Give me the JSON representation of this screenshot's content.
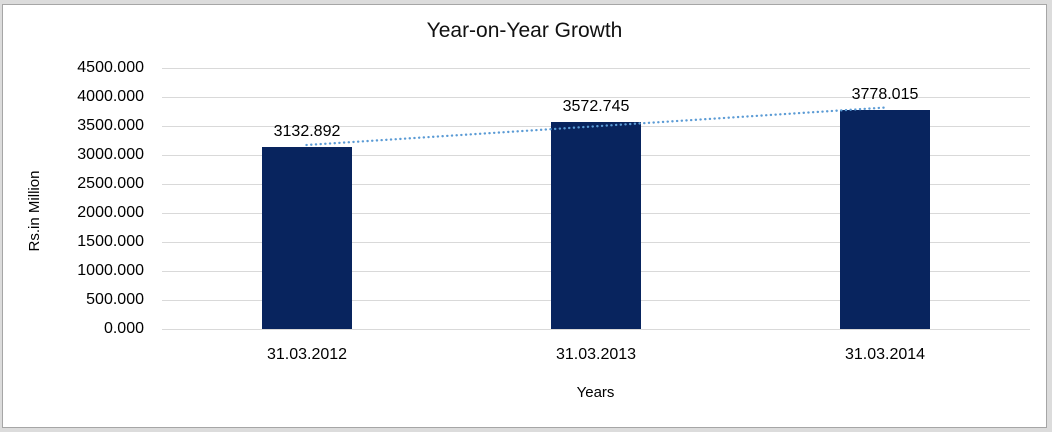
{
  "window": {
    "background_color": "#DCDCDC",
    "frame_border_color": "#A6A6A6",
    "frame_background_color": "#FFFFFF"
  },
  "chart_data": {
    "type": "bar",
    "title": "Year-on-Year Growth",
    "categories": [
      "31.03.2012",
      "31.03.2013",
      "31.03.2014"
    ],
    "values": [
      3132.892,
      3572.745,
      3778.015
    ],
    "data_labels": [
      "3132.892",
      "3572.745",
      "3778.015"
    ],
    "xlabel": "Years",
    "ylabel": "Rs.in Million",
    "ylim": [
      0,
      4500
    ],
    "ytick_step": 500,
    "ytick_labels": [
      "4500.000",
      "4000.000",
      "3500.000",
      "3000.000",
      "2500.000",
      "2000.000",
      "1500.000",
      "1000.000",
      "500.000",
      "0.000"
    ],
    "grid": true,
    "legend_position": "none",
    "bar_color": "#08245E",
    "gridline_color": "#D9D9D9",
    "text_color": "#000000",
    "trendline": {
      "type": "linear",
      "style": "dotted",
      "color": "#5B9BD5"
    }
  }
}
